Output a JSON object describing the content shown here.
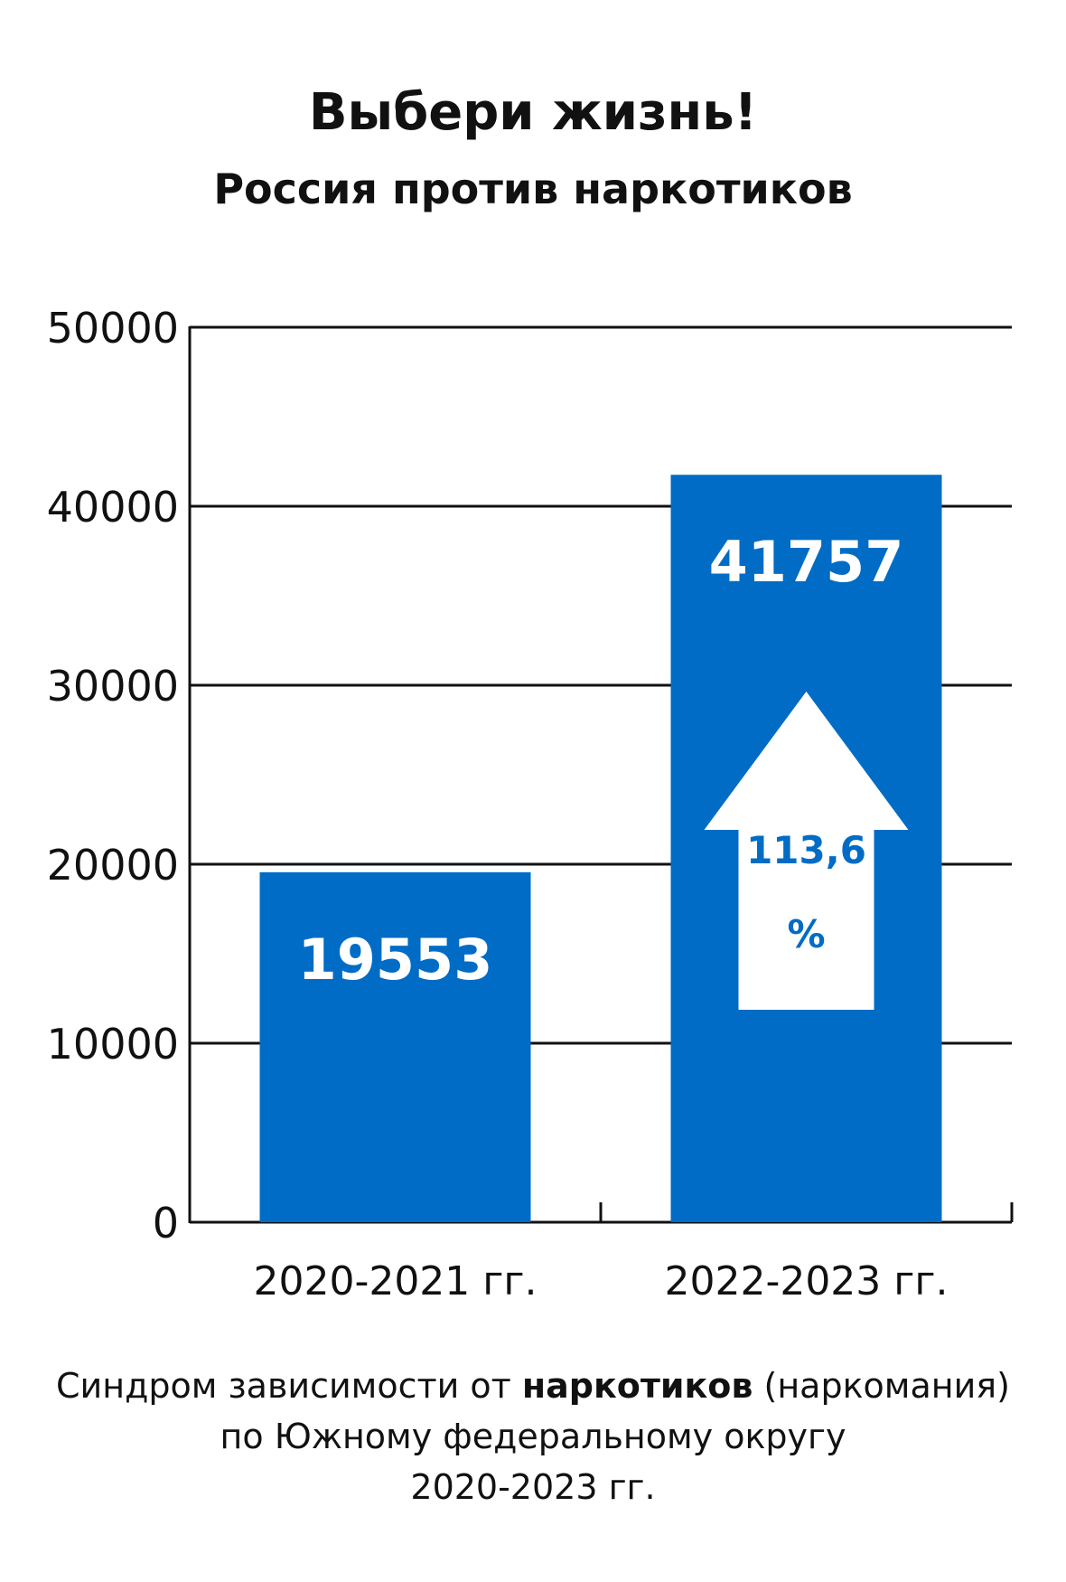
{
  "header": {
    "title": "Выбери жизнь!",
    "subtitle": "Россия против наркотиков"
  },
  "chart_data": {
    "type": "bar",
    "categories": [
      "2020-2021 гг.",
      "2022-2023 гг."
    ],
    "values": [
      19553,
      41757
    ],
    "value_labels": [
      "19553",
      "41757"
    ],
    "ylim": [
      0,
      50000
    ],
    "yticks": [
      0,
      10000,
      20000,
      30000,
      40000,
      50000
    ],
    "grid": true,
    "bar_color": "#006CC6",
    "annotation": {
      "value": "113,6",
      "unit": "%",
      "shape": "up-arrow",
      "text_color": "#006CC6"
    }
  },
  "caption": {
    "line1_before": "Синдром зависимости  от ",
    "line1_bold": "наркотиков",
    "line1_after": " (наркомания)",
    "line2": "по Южному федеральному округу",
    "line3": "2020-2023 гг."
  }
}
